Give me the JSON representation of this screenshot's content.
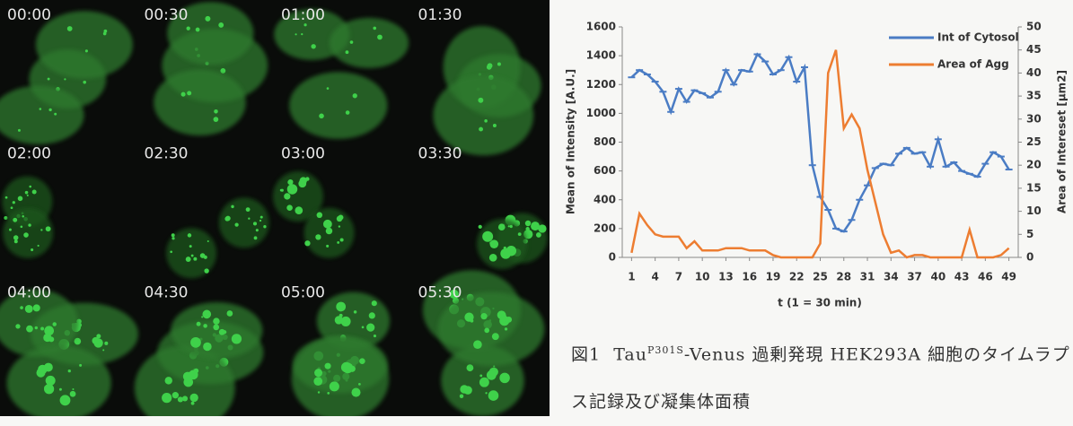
{
  "image_panels": [
    "00:00",
    "00:30",
    "01:00",
    "01:30",
    "02:00",
    "02:30",
    "03:00",
    "03:30",
    "04:00",
    "04:30",
    "05:00",
    "05:30"
  ],
  "chart_data": {
    "type": "line",
    "x_label": "t (1 = 30 min)",
    "y_label": "Mean of Intensity [A.U.]",
    "y2_label": "Area of Intereset [μm2]",
    "x": [
      1,
      2,
      3,
      4,
      5,
      6,
      7,
      8,
      9,
      10,
      11,
      12,
      13,
      14,
      15,
      16,
      17,
      18,
      19,
      20,
      21,
      22,
      23,
      24,
      25,
      26,
      27,
      28,
      29,
      30,
      31,
      32,
      33,
      34,
      35,
      36,
      37,
      38,
      39,
      40,
      41,
      42,
      43,
      44,
      45,
      46,
      47,
      48,
      49
    ],
    "xlim": [
      0.5,
      49.5
    ],
    "xticks": [
      1,
      4,
      7,
      10,
      13,
      16,
      19,
      22,
      25,
      28,
      31,
      34,
      37,
      40,
      43,
      46,
      49
    ],
    "ylim": [
      0,
      1600
    ],
    "yticks": [
      0,
      200,
      400,
      600,
      800,
      1000,
      1200,
      1400,
      1600
    ],
    "y2lim": [
      0,
      50
    ],
    "y2ticks": [
      0,
      5,
      10,
      15,
      20,
      25,
      30,
      35,
      40,
      45,
      50
    ],
    "legend": "upper right",
    "grid": false,
    "series": [
      {
        "name": "Int of Cytosol",
        "color": "#4a7cc4",
        "axis": "y",
        "values": [
          1250,
          1300,
          1270,
          1220,
          1150,
          1010,
          1170,
          1080,
          1160,
          1140,
          1110,
          1150,
          1300,
          1200,
          1300,
          1290,
          1410,
          1360,
          1270,
          1300,
          1390,
          1220,
          1320,
          640,
          420,
          330,
          200,
          180,
          260,
          400,
          500,
          620,
          650,
          640,
          720,
          760,
          720,
          730,
          630,
          820,
          630,
          660,
          600,
          580,
          560,
          650,
          730,
          700,
          610
        ]
      },
      {
        "name": "Area of Agg",
        "color": "#ed7d31",
        "axis": "y2",
        "values": [
          1,
          9.5,
          7,
          5,
          4.5,
          4.5,
          4.5,
          2,
          3.5,
          1.5,
          1.5,
          1.5,
          2,
          2,
          2,
          1.5,
          1.5,
          1.5,
          0.5,
          0,
          0,
          0,
          0,
          0,
          3,
          40,
          45,
          28,
          31,
          28,
          19,
          12,
          5,
          1,
          1.5,
          0,
          0.5,
          0.5,
          0,
          0,
          0,
          0,
          0,
          6,
          0,
          0,
          0,
          0.5,
          2
        ]
      }
    ]
  },
  "caption": {
    "label": "図1",
    "parts": [
      "Tau",
      "P301S",
      "-Venus 過剰発現 HEK293A 細胞のタイムラプス記録及び凝集体面積"
    ]
  }
}
